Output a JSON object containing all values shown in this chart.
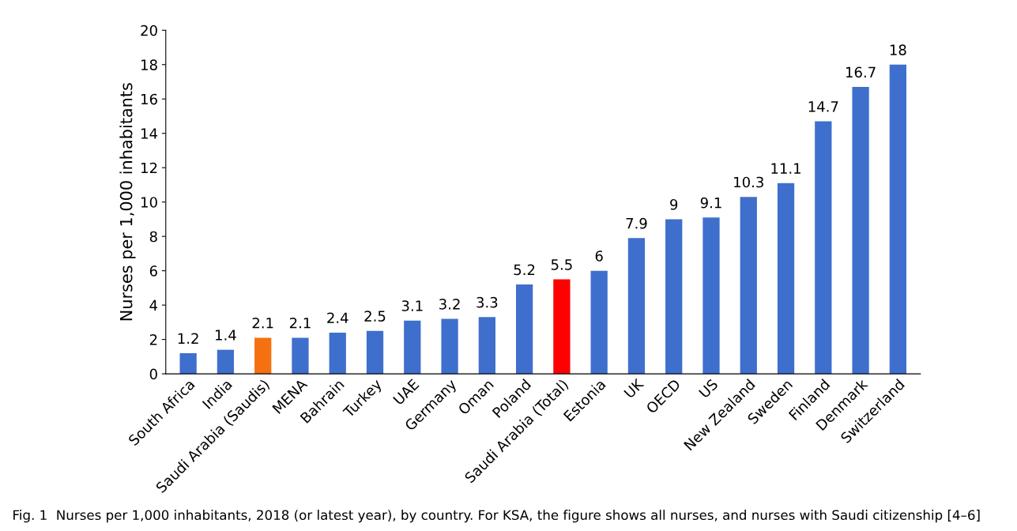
{
  "chart_data": {
    "type": "bar",
    "categories": [
      "South Africa",
      "India",
      "Saudi Arabia (Saudis)",
      "MENA",
      "Bahrain",
      "Turkey",
      "UAE",
      "Germany",
      "Oman",
      "Poland",
      "Saudi Arabia (Total)",
      "Estonia",
      "UK",
      "OECD",
      "US",
      "New Zealand",
      "Sweden",
      "Finland",
      "Denmark",
      "Switzerland"
    ],
    "values": [
      1.2,
      1.4,
      2.1,
      2.1,
      2.4,
      2.5,
      3.1,
      3.2,
      3.3,
      5.2,
      5.5,
      6,
      7.9,
      9,
      9.1,
      10.3,
      11.1,
      14.7,
      16.7,
      18
    ],
    "colors": [
      "#3f6fcc",
      "#3f6fcc",
      "#f5700f",
      "#3f6fcc",
      "#3f6fcc",
      "#3f6fcc",
      "#3f6fcc",
      "#3f6fcc",
      "#3f6fcc",
      "#3f6fcc",
      "#ff0000",
      "#3f6fcc",
      "#3f6fcc",
      "#3f6fcc",
      "#3f6fcc",
      "#3f6fcc",
      "#3f6fcc",
      "#3f6fcc",
      "#3f6fcc",
      "#3f6fcc"
    ],
    "ylabel": "Nurses per 1,000 inhabitants",
    "ylim": [
      0,
      20
    ],
    "yticks": [
      0,
      2,
      4,
      6,
      8,
      10,
      12,
      14,
      16,
      18,
      20
    ],
    "data_labels": true,
    "grid": false,
    "legend": false,
    "annotations": [
      "Fig. 1  Nurses per 1,000 inhabitants, 2018 (or latest year), by country. For KSA, the figure shows all nurses, and nurses with Saudi citizenship [4–6]"
    ]
  }
}
